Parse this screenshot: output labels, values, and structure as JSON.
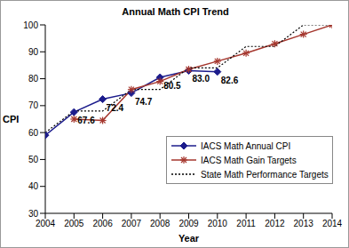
{
  "chart_data": {
    "type": "line",
    "title": "Annual Math CPI Trend",
    "x_label": "Year",
    "y_label": "CPI",
    "x": [
      2004,
      2005,
      2006,
      2007,
      2008,
      2009,
      2010,
      2011,
      2012,
      2013,
      2014
    ],
    "xlim": [
      2004,
      2014
    ],
    "xticks": [
      2004,
      2005,
      2006,
      2007,
      2008,
      2009,
      2010,
      2011,
      2012,
      2013,
      2014
    ],
    "ylim": [
      30,
      100
    ],
    "yticks": [
      30,
      40,
      50,
      60,
      70,
      80,
      90,
      100
    ],
    "grid": false,
    "legend": "lower right",
    "series": [
      {
        "name": "IACS Math Annual CPI",
        "color": "#1c1c8c",
        "marker": "diamond",
        "line_style": "solid",
        "data_labels": true,
        "values": [
          59,
          67.6,
          72.4,
          74.7,
          80.5,
          83.0,
          82.6,
          null,
          null,
          null,
          null
        ],
        "value_labels": [
          null,
          "67.6",
          "72.4",
          "74.7",
          "80.5",
          "83.0",
          "82.6",
          null,
          null,
          null,
          null
        ]
      },
      {
        "name": "IACS Math Gain Targets",
        "color": "#a5372e",
        "marker": "star",
        "line_style": "solid",
        "values": [
          null,
          65,
          64.5,
          76,
          79,
          83.5,
          86.5,
          89.5,
          93,
          96.5,
          100
        ]
      },
      {
        "name": "State Math Performance Targets",
        "color": "#000000",
        "marker": "none",
        "line_style": "dotted",
        "values": [
          60,
          68,
          68,
          76,
          76,
          84,
          84,
          92,
          92,
          100,
          100
        ]
      }
    ]
  }
}
